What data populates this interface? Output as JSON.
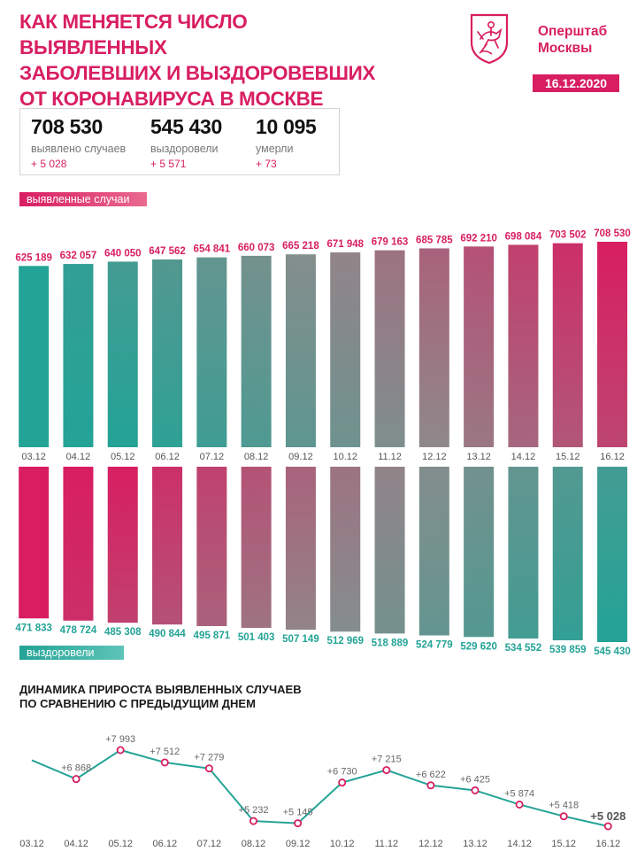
{
  "header": {
    "title_lines": [
      "КАК МЕНЯЕТСЯ ЧИСЛО ВЫЯВЛЕННЫХ",
      "ЗАБОЛЕВШИХ И ВЫЗДОРОВЕВШИХ",
      "ОТ КОРОНАВИРУСА В МОСКВЕ"
    ],
    "brand_lines": [
      "Оперштаб",
      "Москвы"
    ],
    "date": "16.12.2020",
    "emblem_icon": "moscow-coat-of-arms-icon"
  },
  "summary": {
    "cases": {
      "value": "708 530",
      "label": "выявлено случаев",
      "delta": "+ 5 028"
    },
    "recovered": {
      "value": "545 430",
      "label": "выздоровели",
      "delta": "+ 5 571"
    },
    "deaths": {
      "value": "10 095",
      "label": "умерли",
      "delta": "+ 73"
    }
  },
  "colors": {
    "accent": "#d81e61",
    "teal": "#23a396",
    "grey": "#8c8c8c"
  },
  "chart_data": [
    {
      "type": "bar",
      "name": "выявленные случаи",
      "categories": [
        "03.12",
        "04.12",
        "05.12",
        "06.12",
        "07.12",
        "08.12",
        "09.12",
        "10.12",
        "11.12",
        "12.12",
        "13.12",
        "14.12",
        "15.12",
        "16.12"
      ],
      "values": [
        625189,
        632057,
        640050,
        647562,
        654841,
        660073,
        665218,
        671948,
        679163,
        685785,
        692210,
        698084,
        703502,
        708530
      ],
      "labels": [
        "625 189",
        "632 057",
        "640 050",
        "647 562",
        "654 841",
        "660 073",
        "665 218",
        "671 948",
        "679 163",
        "685 785",
        "692 210",
        "698 084",
        "703 502",
        "708 530"
      ],
      "title": "выявленные случаи"
    },
    {
      "type": "bar",
      "name": "выздоровели",
      "categories": [
        "03.12",
        "04.12",
        "05.12",
        "06.12",
        "07.12",
        "08.12",
        "09.12",
        "10.12",
        "11.12",
        "12.12",
        "13.12",
        "14.12",
        "15.12",
        "16.12"
      ],
      "values": [
        471833,
        478724,
        485308,
        490844,
        495871,
        501403,
        507149,
        512969,
        518889,
        524779,
        529620,
        534552,
        539859,
        545430
      ],
      "labels": [
        "471 833",
        "478 724",
        "485 308",
        "490 844",
        "495 871",
        "501 403",
        "507 149",
        "512 969",
        "518 889",
        "524 779",
        "529 620",
        "534 552",
        "539 859",
        "545 430"
      ],
      "title": "выздоровели"
    },
    {
      "type": "line",
      "title_lines": [
        "ДИНАМИКА ПРИРОСТА ВЫЯВЛЕННЫХ СЛУЧАЕВ",
        "ПО СРАВНЕНИЮ С ПРЕДЫДУЩИМ ДНЕМ"
      ],
      "categories": [
        "03.12",
        "04.12",
        "05.12",
        "06.12",
        "07.12",
        "08.12",
        "09.12",
        "10.12",
        "11.12",
        "12.12",
        "13.12",
        "14.12",
        "15.12",
        "16.12"
      ],
      "values": [
        null,
        6868,
        7993,
        7512,
        7279,
        5232,
        5145,
        6730,
        7215,
        6622,
        6425,
        5874,
        5418,
        5028
      ],
      "labels": [
        "",
        "+6 868",
        "+7 993",
        "+7 512",
        "+7 279",
        "+5 232",
        "+5 145",
        "+6 730",
        "+7 215",
        "+6 622",
        "+6 425",
        "+5 874",
        "+5 418",
        "+5 028"
      ],
      "start_value_unlabeled": 7600
    }
  ]
}
